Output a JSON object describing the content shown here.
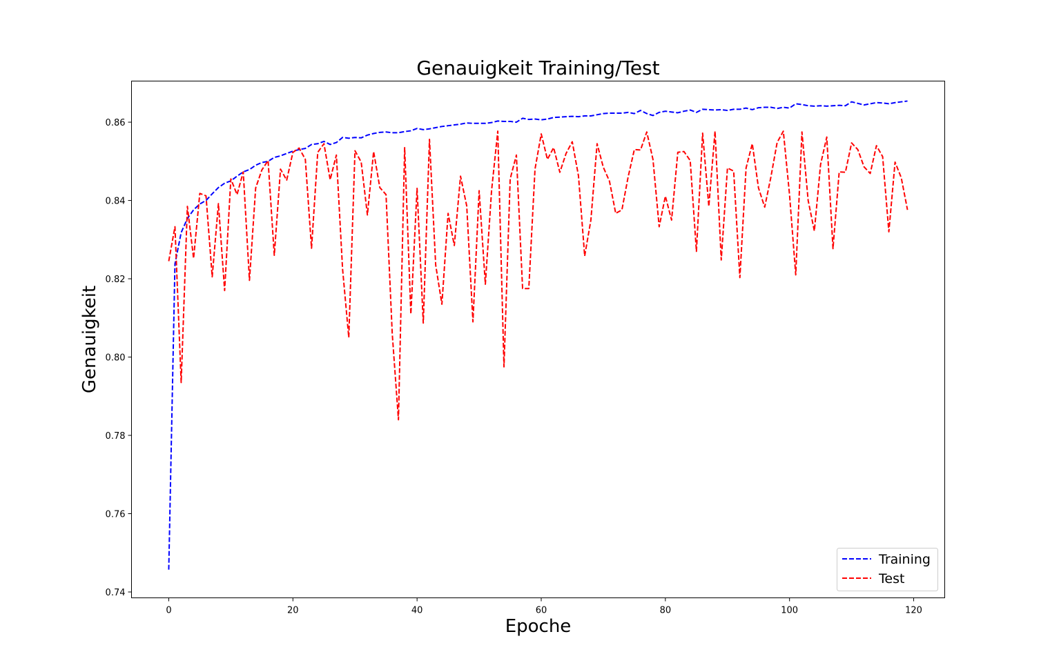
{
  "chart_data": {
    "type": "line",
    "title": "Genauigkeit Training/Test",
    "xlabel": "Epoche",
    "ylabel": "Genauigkeit",
    "xlim": [
      -6,
      125
    ],
    "ylim": [
      0.7385,
      0.8705
    ],
    "xticks": [
      0,
      20,
      40,
      60,
      80,
      100,
      120
    ],
    "yticks": [
      0.74,
      0.76,
      0.78,
      0.8,
      0.82,
      0.84,
      0.86
    ],
    "ytick_labels": [
      "0.74",
      "0.76",
      "0.78",
      "0.80",
      "0.82",
      "0.84",
      "0.86"
    ],
    "grid": false,
    "legend_position": "lower-right",
    "series": [
      {
        "name": "Training",
        "color": "#0000ff",
        "linestyle": "dashed",
        "values": [
          0.7457,
          0.8238,
          0.8318,
          0.8354,
          0.8376,
          0.8391,
          0.84,
          0.8417,
          0.8433,
          0.8444,
          0.845,
          0.8462,
          0.8473,
          0.8479,
          0.849,
          0.8497,
          0.85,
          0.851,
          0.8514,
          0.852,
          0.8526,
          0.853,
          0.8533,
          0.8543,
          0.8545,
          0.8551,
          0.8543,
          0.8548,
          0.8561,
          0.8559,
          0.8561,
          0.856,
          0.8567,
          0.8571,
          0.8574,
          0.8575,
          0.8573,
          0.8573,
          0.8576,
          0.8578,
          0.8584,
          0.8581,
          0.8583,
          0.8586,
          0.8589,
          0.8591,
          0.8593,
          0.8595,
          0.8598,
          0.8597,
          0.8597,
          0.8597,
          0.8599,
          0.8603,
          0.8602,
          0.8602,
          0.86,
          0.861,
          0.8607,
          0.8608,
          0.8606,
          0.8608,
          0.8612,
          0.8613,
          0.8614,
          0.8615,
          0.8614,
          0.8616,
          0.8616,
          0.8619,
          0.8622,
          0.8623,
          0.8623,
          0.8623,
          0.8625,
          0.8622,
          0.863,
          0.8622,
          0.8617,
          0.8625,
          0.8628,
          0.8626,
          0.8624,
          0.8628,
          0.8631,
          0.8625,
          0.8633,
          0.8632,
          0.8631,
          0.8632,
          0.863,
          0.8633,
          0.8633,
          0.8636,
          0.8632,
          0.8637,
          0.8638,
          0.8638,
          0.8635,
          0.8638,
          0.8636,
          0.8647,
          0.8645,
          0.8642,
          0.8641,
          0.8642,
          0.8641,
          0.8642,
          0.8643,
          0.8642,
          0.8652,
          0.8648,
          0.8644,
          0.8647,
          0.865,
          0.8649,
          0.8647,
          0.865,
          0.8652,
          0.8654
        ]
      },
      {
        "name": "Test",
        "color": "#ff0000",
        "linestyle": "dashed",
        "values": [
          0.8245,
          0.8333,
          0.7935,
          0.8385,
          0.8252,
          0.8418,
          0.8412,
          0.8205,
          0.8392,
          0.817,
          0.8455,
          0.8415,
          0.8473,
          0.8196,
          0.8432,
          0.8478,
          0.8502,
          0.826,
          0.848,
          0.8452,
          0.8523,
          0.8534,
          0.8505,
          0.8278,
          0.8523,
          0.8545,
          0.8453,
          0.8516,
          0.8225,
          0.805,
          0.8527,
          0.8498,
          0.8363,
          0.8525,
          0.8433,
          0.8415,
          0.806,
          0.784,
          0.8535,
          0.811,
          0.8431,
          0.8087,
          0.8556,
          0.8235,
          0.8135,
          0.8367,
          0.8285,
          0.8462,
          0.8386,
          0.809,
          0.8425,
          0.8186,
          0.8425,
          0.8577,
          0.7975,
          0.8455,
          0.8516,
          0.8175,
          0.8175,
          0.848,
          0.857,
          0.8505,
          0.8535,
          0.8472,
          0.852,
          0.855,
          0.8463,
          0.8258,
          0.835,
          0.8545,
          0.8485,
          0.8449,
          0.8367,
          0.8376,
          0.846,
          0.853,
          0.8529,
          0.8575,
          0.8505,
          0.8333,
          0.8411,
          0.835,
          0.8523,
          0.8525,
          0.8502,
          0.827,
          0.8572,
          0.8385,
          0.8577,
          0.8248,
          0.8483,
          0.8475,
          0.8203,
          0.8483,
          0.8545,
          0.8432,
          0.8383,
          0.846,
          0.8548,
          0.8577,
          0.8415,
          0.821,
          0.8575,
          0.84,
          0.8322,
          0.8492,
          0.8562,
          0.8277,
          0.8473,
          0.8472,
          0.8547,
          0.853,
          0.8486,
          0.8469,
          0.854,
          0.8512,
          0.832,
          0.8498,
          0.8458,
          0.8376
        ]
      }
    ]
  }
}
